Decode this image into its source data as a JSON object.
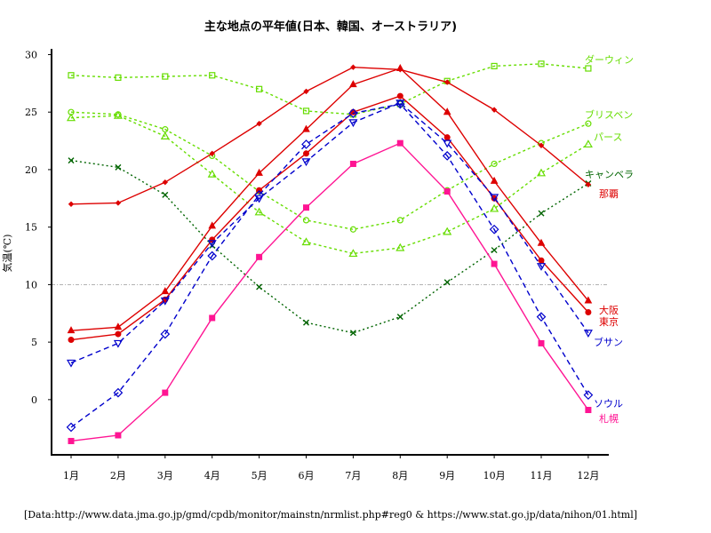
{
  "chart_data": {
    "type": "line",
    "title": "主な地点の平年値(日本、韓国、オーストラリア)",
    "xlabel": "",
    "ylabel": "気温(℃)",
    "categories": [
      "1月",
      "2月",
      "3月",
      "4月",
      "5月",
      "6月",
      "7月",
      "8月",
      "9月",
      "10月",
      "11月",
      "12月"
    ],
    "ylim": [
      -4.8,
      30.5
    ],
    "yticks": [
      0,
      5,
      10,
      15,
      20,
      25,
      30
    ],
    "ytick_labels": [
      "0",
      "5",
      "10",
      "15",
      "20",
      "25",
      "30"
    ],
    "reference_line": 10,
    "source": "[Data:http://www.data.jma.go.jp/gmd/cpdb/monitor/mainstn/nrmlist.php#reg0 & https://www.stat.go.jp/data/nihon/01.html]",
    "series": [
      {
        "name": "ダーウィン",
        "color": "#66dd00",
        "dash": "3,3",
        "marker": "square",
        "values": [
          28.2,
          28.0,
          28.1,
          28.2,
          27.0,
          25.1,
          24.8,
          25.7,
          27.7,
          29.0,
          29.2,
          28.8
        ]
      },
      {
        "name": "ブリスベン",
        "color": "#66dd00",
        "dash": "3,3",
        "marker": "circle",
        "values": [
          25.0,
          24.8,
          23.5,
          21.2,
          18.1,
          15.6,
          14.8,
          15.6,
          18.2,
          20.5,
          22.3,
          24.0
        ]
      },
      {
        "name": "パース",
        "color": "#66dd00",
        "dash": "3,3",
        "marker": "triangle-up",
        "values": [
          24.5,
          24.7,
          22.9,
          19.6,
          16.3,
          13.7,
          12.7,
          13.2,
          14.6,
          16.6,
          19.7,
          22.2
        ]
      },
      {
        "name": "キャンベラ",
        "color": "#006400",
        "dash": "2,3",
        "marker": "x",
        "values": [
          20.8,
          20.2,
          17.8,
          13.4,
          9.8,
          6.7,
          5.8,
          7.2,
          10.2,
          13.0,
          16.2,
          18.8
        ]
      },
      {
        "name": "那覇",
        "color": "#dd0000",
        "dash": "",
        "marker": "diamond-small",
        "values": [
          17.0,
          17.1,
          18.9,
          21.4,
          24.0,
          26.8,
          28.9,
          28.7,
          27.6,
          25.2,
          22.1,
          18.7
        ]
      },
      {
        "name": "大阪",
        "color": "#dd0000",
        "dash": "",
        "marker": "triangle-up-filled",
        "values": [
          6.0,
          6.3,
          9.4,
          15.1,
          19.7,
          23.5,
          27.4,
          28.8,
          25.0,
          19.0,
          13.6,
          8.6
        ]
      },
      {
        "name": "東京",
        "color": "#dd0000",
        "dash": "",
        "marker": "circle-filled",
        "values": [
          5.2,
          5.7,
          8.7,
          13.9,
          18.2,
          21.4,
          25.0,
          26.4,
          22.8,
          17.5,
          12.1,
          7.6
        ]
      },
      {
        "name": "ブサン",
        "color": "#0000cc",
        "dash": "6,4",
        "marker": "triangle-down",
        "values": [
          3.2,
          4.9,
          8.6,
          13.6,
          17.5,
          20.7,
          24.1,
          25.8,
          22.3,
          17.6,
          11.6,
          5.8
        ]
      },
      {
        "name": "ソウル",
        "color": "#0000cc",
        "dash": "6,4",
        "marker": "diamond",
        "values": [
          -2.4,
          0.6,
          5.7,
          12.5,
          17.8,
          22.2,
          24.9,
          25.7,
          21.2,
          14.8,
          7.2,
          0.4
        ]
      },
      {
        "name": "札幌",
        "color": "#ff1493",
        "dash": "",
        "marker": "square-filled",
        "values": [
          -3.6,
          -3.1,
          0.6,
          7.1,
          12.4,
          16.7,
          20.5,
          22.3,
          18.1,
          11.8,
          4.9,
          -0.9
        ]
      }
    ]
  }
}
